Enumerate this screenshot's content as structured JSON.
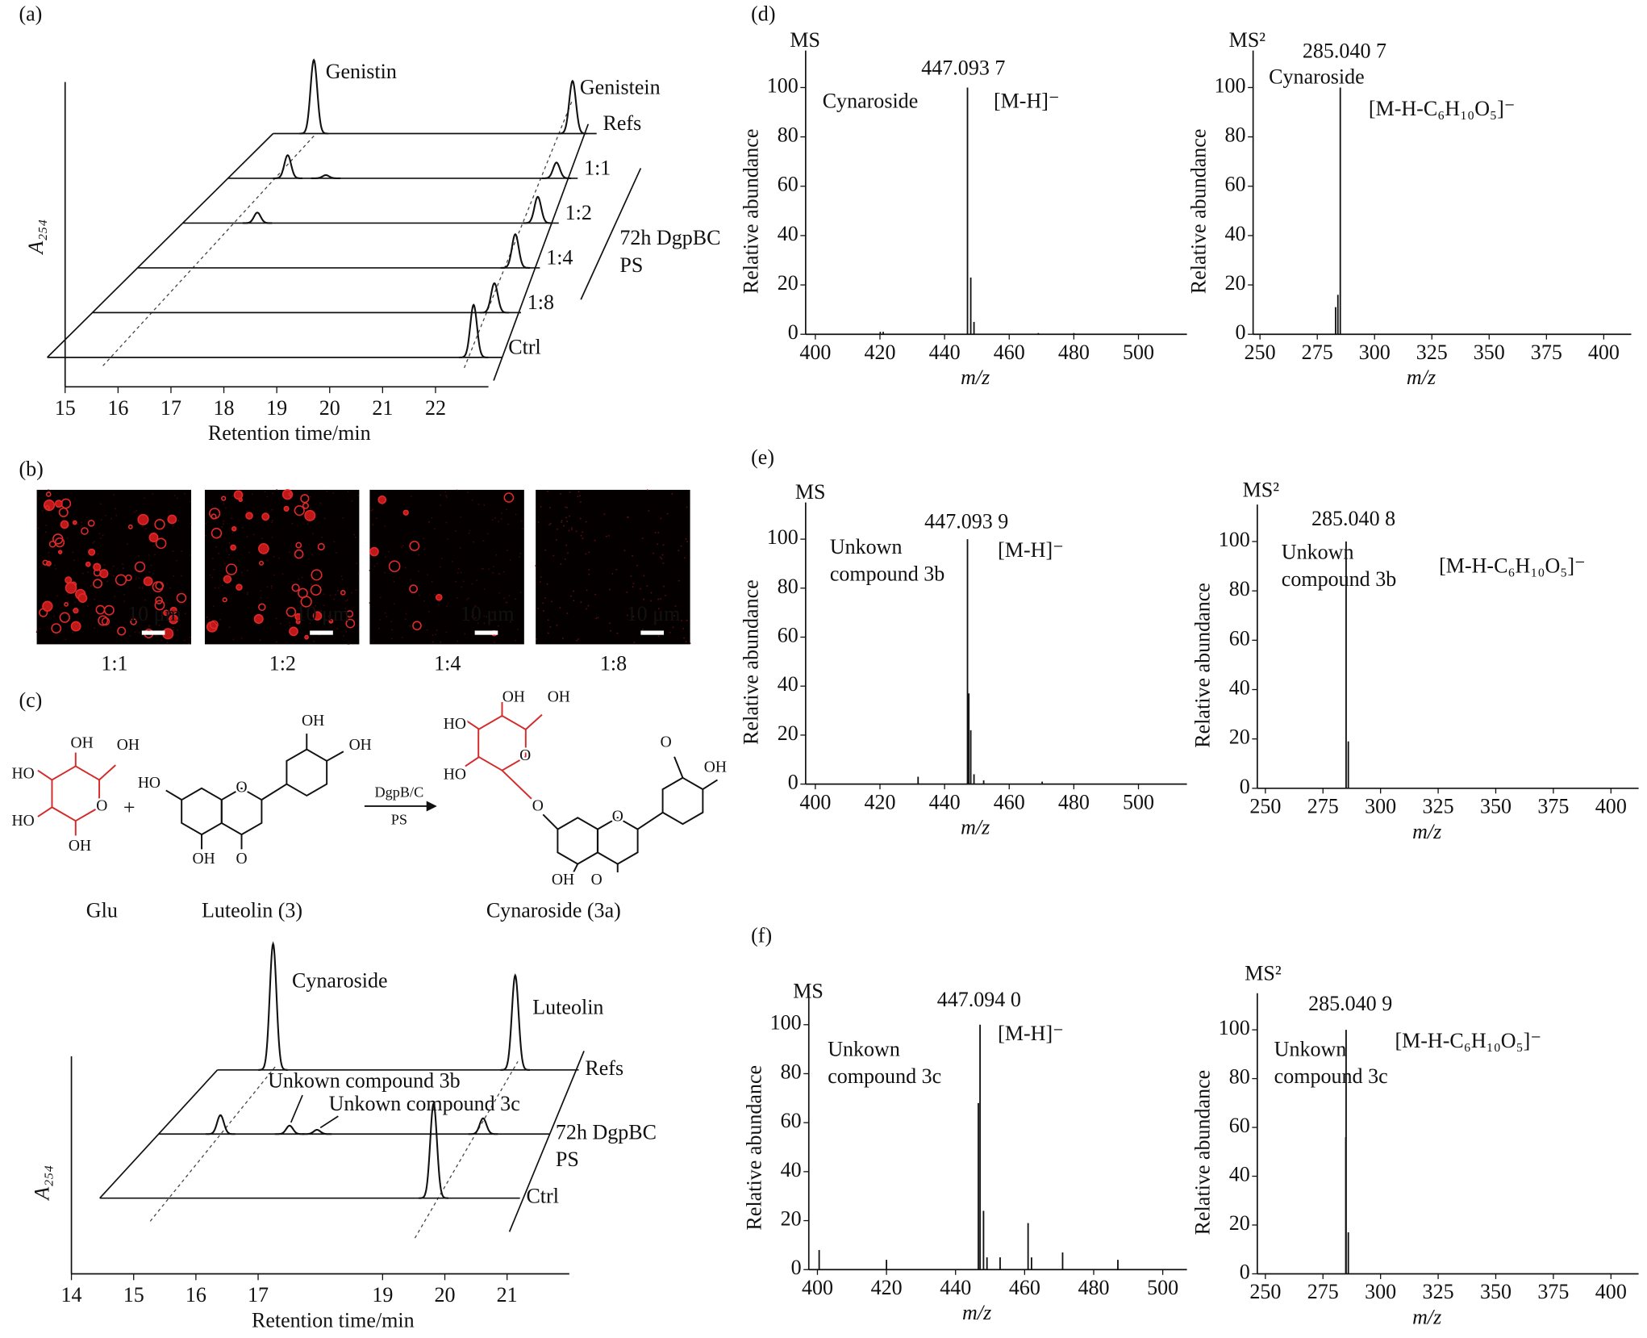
{
  "panel_labels": [
    "(a)",
    "(b)",
    "(c)",
    "(d)",
    "(e)",
    "(f)"
  ],
  "chart_data": [
    {
      "type": "waterfall",
      "ylabel": "A₂₅₄",
      "xlabel": "Retention time/min",
      "xlim": [
        15,
        23
      ],
      "xticks": [
        15,
        16,
        17,
        18,
        19,
        20,
        21,
        22
      ],
      "series": [
        {
          "name": "Refs",
          "x": [
            15.73,
            20.62
          ],
          "values": [
            70,
            50
          ]
        },
        {
          "name": "1:1",
          "x": [
            16.03,
            16.75,
            21.11
          ],
          "values": [
            22,
            3,
            15
          ]
        },
        {
          "name": "1:2",
          "x": [
            16.25,
            21.55
          ],
          "values": [
            10,
            25
          ]
        },
        {
          "name": "1:4",
          "x": [
            21.92
          ],
          "values": [
            32
          ]
        },
        {
          "name": "1:8",
          "x": [
            22.32
          ],
          "values": [
            28
          ]
        },
        {
          "name": "Ctrl",
          "x": [
            22.72
          ],
          "values": [
            50
          ]
        }
      ],
      "annotations": [
        "Genistin",
        "Genistein"
      ],
      "group_label": "72h DgpBC\nPS"
    },
    {
      "type": "waterfall",
      "ylabel": "A₂₅₄",
      "xlabel": "Retention time/min",
      "xlim": [
        14,
        22
      ],
      "xticks": [
        14,
        15,
        16,
        17,
        19,
        20,
        21
      ],
      "series": [
        {
          "name": "Refs",
          "x": [
            15.35,
            19.24
          ],
          "values": [
            120,
            90
          ]
        },
        {
          "name": "72h DgpBC\nPS",
          "x": [
            15.45,
            16.56,
            17.0,
            19.67
          ],
          "values": [
            18,
            8,
            4,
            15
          ]
        },
        {
          "name": "Ctrl",
          "x": [
            19.82
          ],
          "values": [
            90
          ]
        }
      ],
      "annotations": [
        "Cynaroside",
        "Luteolin",
        "Unkown compound 3b",
        "Unkown compound 3c"
      ]
    },
    {
      "type": "ms",
      "label": "MS",
      "peak_label": "447.093 7",
      "annotation": "Cynaroside",
      "ion_label": "[M-H]⁻",
      "xlabel": "m/z",
      "ylabel": "Relative abundance",
      "xlim": [
        397,
        515
      ],
      "xticks": [
        400,
        420,
        440,
        460,
        480,
        500
      ],
      "ylim": [
        0,
        115
      ],
      "yticks": [
        0,
        20,
        40,
        60,
        80,
        100
      ],
      "x": [
        420.1,
        421.0,
        447.09,
        448.1,
        449.1,
        469.0,
        480.0
      ],
      "values": [
        1,
        1,
        100,
        23,
        5,
        0.5,
        0.5
      ]
    },
    {
      "type": "ms",
      "label": "MS²",
      "peak_label": "285.040 7",
      "annotation": "Cynaroside",
      "ion_label": "[M-H-C₆H₁₀O₅]⁻",
      "xlabel": "m/z",
      "ylabel": "Relative abundance",
      "xlim": [
        247,
        412
      ],
      "xticks": [
        250,
        275,
        300,
        325,
        350,
        375,
        400
      ],
      "ylim": [
        0,
        115
      ],
      "yticks": [
        0,
        20,
        40,
        60,
        80,
        100
      ],
      "x": [
        283.0,
        284.0,
        285.04
      ],
      "values": [
        11,
        16,
        100
      ]
    },
    {
      "type": "ms",
      "label": "MS",
      "peak_label": "447.093 9",
      "annotation": "Unkown\ncompound 3b",
      "ion_label": "[M-H]⁻",
      "xlabel": "m/z",
      "ylabel": "Relative abundance",
      "xlim": [
        397,
        515
      ],
      "xticks": [
        400,
        420,
        440,
        460,
        480,
        500
      ],
      "ylim": [
        0,
        115
      ],
      "yticks": [
        0,
        20,
        40,
        60,
        80,
        100
      ],
      "x": [
        431.8,
        447.09,
        447.5,
        448.1,
        449.1,
        452.1,
        470.2
      ],
      "values": [
        3,
        100,
        37,
        22,
        4,
        1.5,
        1
      ]
    },
    {
      "type": "ms",
      "label": "MS²",
      "peak_label": "285.040 8",
      "annotation": "Unkown\ncompound 3b",
      "ion_label": "[M-H-C₆H₁₀O₅]⁻",
      "xlabel": "m/z",
      "ylabel": "Relative abundance",
      "xlim": [
        246.5,
        412
      ],
      "xticks": [
        250,
        275,
        300,
        325,
        350,
        375,
        400
      ],
      "ylim": [
        0,
        115
      ],
      "yticks": [
        0,
        20,
        40,
        60,
        80,
        100
      ],
      "x": [
        285.04,
        286.0
      ],
      "values": [
        100,
        19
      ]
    },
    {
      "type": "ms",
      "label": "MS",
      "peak_label": "447.094 0",
      "annotation": "Unkown\ncompound 3c",
      "ion_label": "[M-H]⁻",
      "xlabel": "m/z",
      "ylabel": "Relative abundance",
      "xlim": [
        397.5,
        507
      ],
      "xticks": [
        400,
        420,
        440,
        460,
        480,
        500
      ],
      "ylim": [
        0,
        115
      ],
      "yticks": [
        0,
        20,
        40,
        60,
        80,
        100
      ],
      "x": [
        400.5,
        420.0,
        446.6,
        447.09,
        448.1,
        449.1,
        452.9,
        461.0,
        462.0,
        471.0,
        487.0
      ],
      "values": [
        8,
        4,
        68,
        100,
        24,
        5,
        5,
        19,
        5,
        7,
        4
      ]
    },
    {
      "type": "ms",
      "label": "MS²",
      "peak_label": "285.040 9",
      "annotation": "Unkown\ncompound 3c",
      "ion_label": "[M-H-C₆H₁₀O₅]⁻",
      "xlabel": "m/z",
      "ylabel": "Relative abundance",
      "xlim": [
        246.5,
        412
      ],
      "xticks": [
        250,
        275,
        300,
        325,
        350,
        375,
        400
      ],
      "ylim": [
        0,
        115
      ],
      "yticks": [
        0,
        20,
        40,
        60,
        80,
        100
      ],
      "x": [
        284.9,
        285.04,
        286.0
      ],
      "values": [
        56,
        100,
        17
      ]
    }
  ],
  "micrographs": [
    {
      "scale_bar": "10 μm",
      "label": "1:1"
    },
    {
      "scale_bar": "10 μm",
      "label": "1:2"
    },
    {
      "scale_bar": "10 μm",
      "label": "1:4"
    },
    {
      "scale_bar": "10 μm",
      "label": "1:8"
    }
  ],
  "scheme": {
    "atoms": [
      "OH",
      "OH",
      "HO",
      "HO",
      "OH",
      "O",
      "+",
      "HO",
      "OH",
      "O",
      "O",
      "OH",
      "OH",
      "OH",
      "OH",
      "HO",
      "HO",
      "O",
      "O",
      "O",
      "O",
      "OH",
      "O",
      "OH",
      "OH"
    ],
    "arrow_top": "DgpB/C",
    "arrow_bottom": "PS",
    "names": [
      "Glu",
      "Luteolin (3)",
      "Cynaroside (3a)"
    ]
  }
}
